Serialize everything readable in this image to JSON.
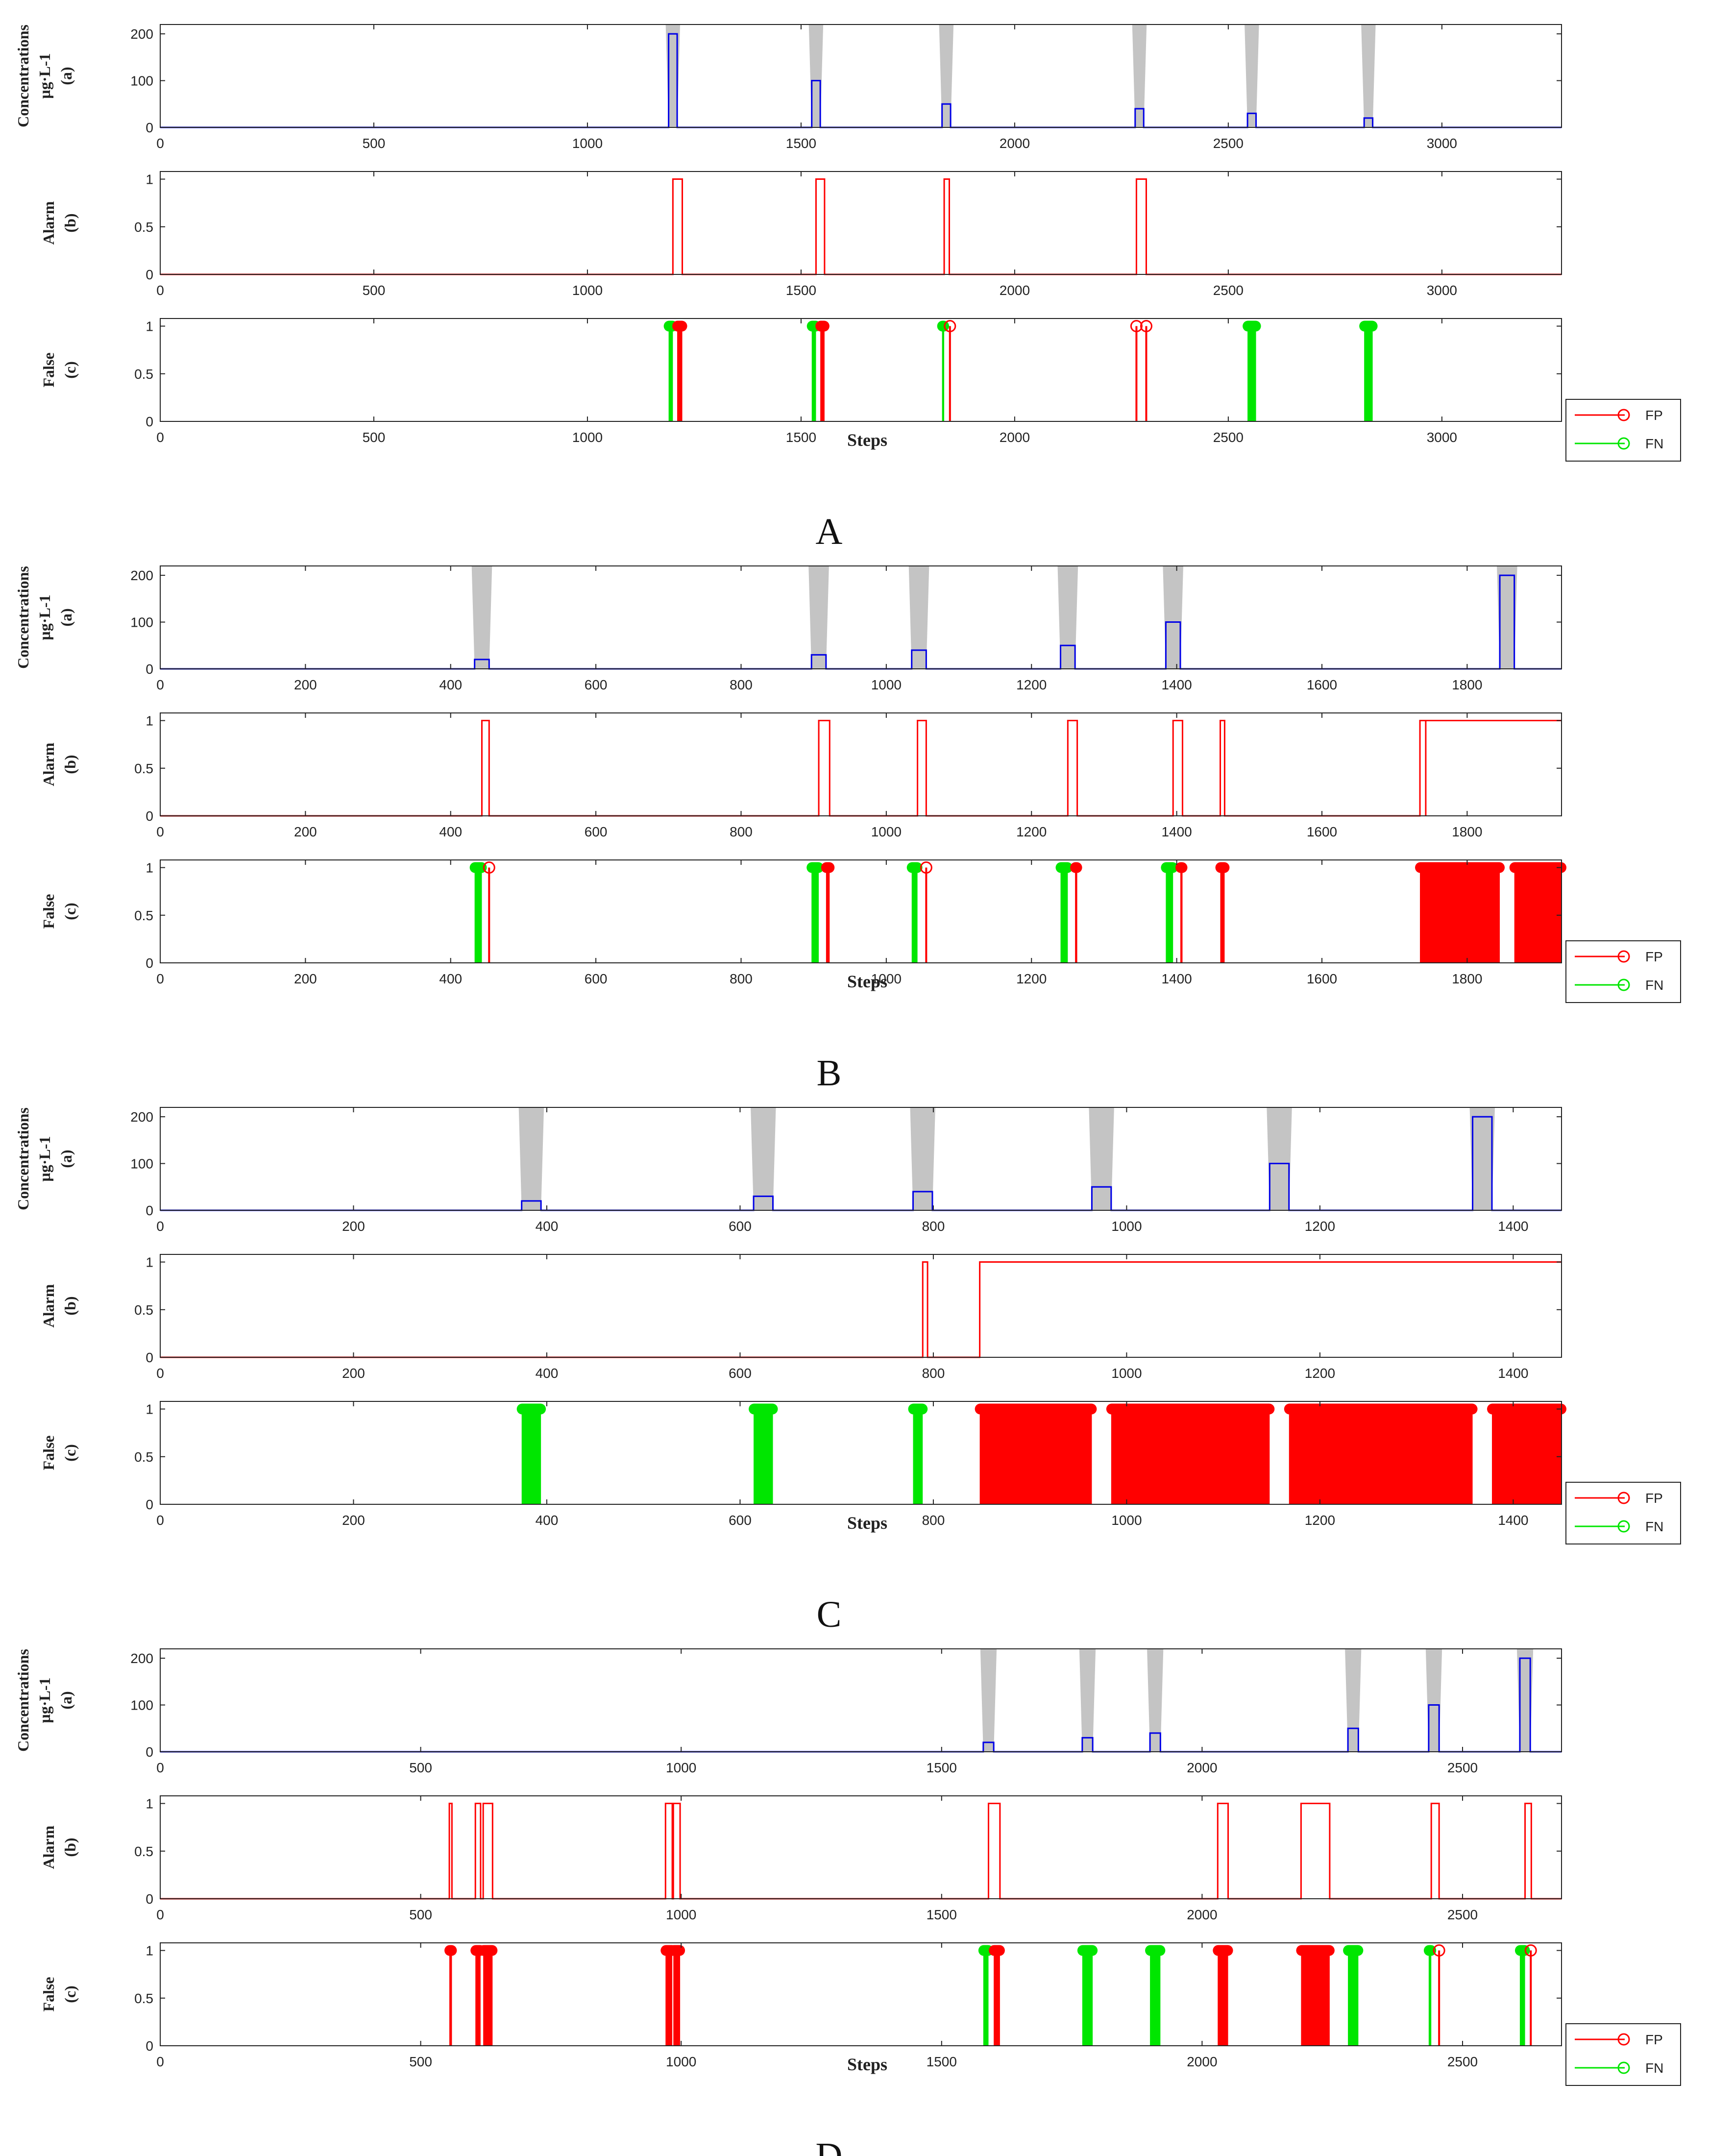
{
  "colors": {
    "gray": "#c4c4c4",
    "blue": "#0000e6",
    "red": "#ff0000",
    "green": "#00e600"
  },
  "legend": [
    "FP",
    "FN"
  ],
  "chart_data": [
    {
      "panel": "A",
      "type": "line",
      "xmax": 3280,
      "xticks": [
        0,
        500,
        1000,
        1500,
        2000,
        2500,
        3000
      ],
      "xlabel": "Steps",
      "subplots": [
        {
          "id": "a",
          "ylabel": [
            "Concentrations",
            "µg·L-1",
            "(a)"
          ],
          "yticks": [
            0,
            100,
            200
          ],
          "ylim": [
            0,
            220
          ]
        },
        {
          "id": "b",
          "ylabel": [
            "Alarm",
            "(b)"
          ],
          "yticks": [
            0,
            0.5,
            1
          ],
          "ylim": [
            0,
            1.08
          ]
        },
        {
          "id": "c",
          "ylabel": [
            "False",
            "(c)"
          ],
          "yticks": [
            0,
            0.5,
            1
          ],
          "ylim": [
            0,
            1.08
          ]
        }
      ],
      "events": [
        {
          "start": 1190,
          "end": 1210,
          "conc": 200
        },
        {
          "start": 1525,
          "end": 1545,
          "conc": 100
        },
        {
          "start": 1830,
          "end": 1850,
          "conc": 50
        },
        {
          "start": 2282,
          "end": 2302,
          "conc": 40
        },
        {
          "start": 2545,
          "end": 2565,
          "conc": 30
        },
        {
          "start": 2818,
          "end": 2838,
          "conc": 20
        }
      ],
      "alarms": [
        [
          1200,
          1222
        ],
        [
          1535,
          1555
        ],
        [
          1835,
          1847
        ],
        [
          2285,
          2308
        ]
      ],
      "fn": [
        [
          1190,
          1200
        ],
        [
          1525,
          1535
        ],
        [
          1830,
          1835
        ],
        [
          2545,
          2565
        ],
        [
          2818,
          2838
        ]
      ],
      "fp": [
        [
          1210,
          1222
        ],
        [
          1545,
          1555
        ],
        [
          1847,
          1850
        ],
        [
          2285,
          2285
        ],
        [
          2308,
          2308
        ]
      ],
      "alarm_final_on": null
    },
    {
      "panel": "B",
      "type": "line",
      "xmax": 1930,
      "xticks": [
        0,
        200,
        400,
        600,
        800,
        1000,
        1200,
        1400,
        1600,
        1800
      ],
      "xlabel": "Steps",
      "subplots": [
        {
          "id": "a",
          "ylabel": [
            "Concentrations",
            "µg·L-1",
            "(a)"
          ],
          "yticks": [
            0,
            100,
            200
          ],
          "ylim": [
            0,
            220
          ]
        },
        {
          "id": "b",
          "ylabel": [
            "Alarm",
            "(b)"
          ],
          "yticks": [
            0,
            0.5,
            1
          ],
          "ylim": [
            0,
            1.08
          ]
        },
        {
          "id": "c",
          "ylabel": [
            "False",
            "(c)"
          ],
          "yticks": [
            0,
            0.5,
            1
          ],
          "ylim": [
            0,
            1.08
          ]
        }
      ],
      "events": [
        {
          "start": 433,
          "end": 453,
          "conc": 20
        },
        {
          "start": 897,
          "end": 917,
          "conc": 30
        },
        {
          "start": 1035,
          "end": 1055,
          "conc": 40
        },
        {
          "start": 1240,
          "end": 1260,
          "conc": 50
        },
        {
          "start": 1385,
          "end": 1405,
          "conc": 100
        },
        {
          "start": 1845,
          "end": 1865,
          "conc": 200
        }
      ],
      "alarms": [
        [
          443,
          453
        ],
        [
          907,
          922
        ],
        [
          1043,
          1055
        ],
        [
          1250,
          1263
        ],
        [
          1395,
          1408
        ],
        [
          1460,
          1466
        ],
        [
          1735,
          1743
        ]
      ],
      "fn": [
        [
          433,
          443
        ],
        [
          897,
          907
        ],
        [
          1035,
          1043
        ],
        [
          1240,
          1250
        ],
        [
          1385,
          1395
        ]
      ],
      "fp": [
        [
          453,
          453
        ],
        [
          917,
          922
        ],
        [
          1055,
          1055
        ],
        [
          1260,
          1263
        ],
        [
          1405,
          1408
        ],
        [
          1460,
          1466
        ],
        [
          1735,
          1845
        ],
        [
          1865,
          1930
        ]
      ],
      "alarm_final_on": 1743
    },
    {
      "panel": "C",
      "type": "line",
      "xmax": 1450,
      "xticks": [
        0,
        200,
        400,
        600,
        800,
        1000,
        1200,
        1400
      ],
      "xlabel": "Steps",
      "subplots": [
        {
          "id": "a",
          "ylabel": [
            "Concentrations",
            "µg·L-1",
            "(a)"
          ],
          "yticks": [
            0,
            100,
            200
          ],
          "ylim": [
            0,
            220
          ]
        },
        {
          "id": "b",
          "ylabel": [
            "Alarm",
            "(b)"
          ],
          "yticks": [
            0,
            0.5,
            1
          ],
          "ylim": [
            0,
            1.08
          ]
        },
        {
          "id": "c",
          "ylabel": [
            "False",
            "(c)"
          ],
          "yticks": [
            0,
            0.5,
            1
          ],
          "ylim": [
            0,
            1.08
          ]
        }
      ],
      "events": [
        {
          "start": 374,
          "end": 394,
          "conc": 20
        },
        {
          "start": 614,
          "end": 634,
          "conc": 30
        },
        {
          "start": 779,
          "end": 799,
          "conc": 40
        },
        {
          "start": 964,
          "end": 984,
          "conc": 50
        },
        {
          "start": 1148,
          "end": 1168,
          "conc": 100
        },
        {
          "start": 1358,
          "end": 1378,
          "conc": 200
        }
      ],
      "alarms": [
        [
          789,
          794
        ]
      ],
      "fn": [
        [
          374,
          394
        ],
        [
          614,
          634
        ],
        [
          779,
          789
        ]
      ],
      "fp": [
        [
          848,
          964
        ],
        [
          984,
          1148
        ],
        [
          1168,
          1358
        ],
        [
          1378,
          1450
        ]
      ],
      "alarm_final_on": 848
    },
    {
      "panel": "D",
      "type": "line",
      "xmax": 2690,
      "xticks": [
        0,
        500,
        1000,
        1500,
        2000,
        2500
      ],
      "xlabel": "Steps",
      "subplots": [
        {
          "id": "a",
          "ylabel": [
            "Concentrations",
            "µg·L-1",
            "(a)"
          ],
          "yticks": [
            0,
            100,
            200
          ],
          "ylim": [
            0,
            220
          ]
        },
        {
          "id": "b",
          "ylabel": [
            "Alarm",
            "(b)"
          ],
          "yticks": [
            0,
            0.5,
            1
          ],
          "ylim": [
            0,
            1.08
          ]
        },
        {
          "id": "c",
          "ylabel": [
            "False",
            "(c)"
          ],
          "yticks": [
            0,
            0.5,
            1
          ],
          "ylim": [
            0,
            1.08
          ]
        }
      ],
      "events": [
        {
          "start": 1580,
          "end": 1600,
          "conc": 20
        },
        {
          "start": 1770,
          "end": 1790,
          "conc": 30
        },
        {
          "start": 1900,
          "end": 1920,
          "conc": 40
        },
        {
          "start": 2280,
          "end": 2300,
          "conc": 50
        },
        {
          "start": 2435,
          "end": 2455,
          "conc": 100
        },
        {
          "start": 2610,
          "end": 2630,
          "conc": 200
        }
      ],
      "alarms": [
        [
          555,
          560
        ],
        [
          605,
          615
        ],
        [
          620,
          638
        ],
        [
          970,
          983
        ],
        [
          985,
          998
        ],
        [
          1590,
          1612
        ],
        [
          2030,
          2050
        ],
        [
          2190,
          2245
        ],
        [
          2440,
          2455
        ],
        [
          2620,
          2632
        ]
      ],
      "fn": [
        [
          1580,
          1590
        ],
        [
          1770,
          1790
        ],
        [
          1900,
          1920
        ],
        [
          2280,
          2300
        ],
        [
          2435,
          2440
        ],
        [
          2610,
          2620
        ]
      ],
      "fp": [
        [
          555,
          560
        ],
        [
          605,
          615
        ],
        [
          620,
          638
        ],
        [
          970,
          983
        ],
        [
          985,
          998
        ],
        [
          1600,
          1612
        ],
        [
          2030,
          2050
        ],
        [
          2190,
          2245
        ],
        [
          2455,
          2455
        ],
        [
          2630,
          2632
        ]
      ],
      "alarm_final_on": null
    }
  ]
}
